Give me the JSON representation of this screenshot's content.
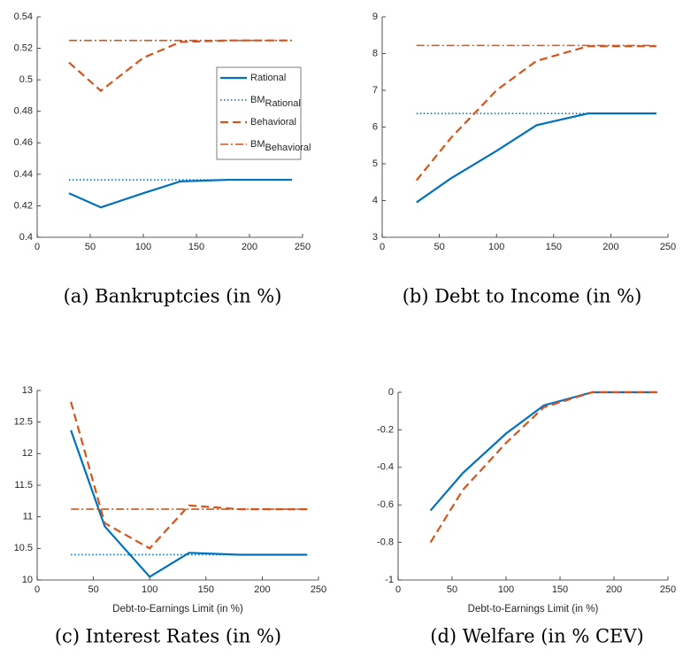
{
  "chart_data": [
    {
      "type": "line",
      "caption": "(a) Bankruptcies (in %)",
      "xlim": [
        0,
        250
      ],
      "xticks": [
        0,
        50,
        100,
        150,
        200,
        250
      ],
      "ylim": [
        0.4,
        0.54
      ],
      "yticks": [
        0.4,
        0.42,
        0.44,
        0.46,
        0.48,
        0.5,
        0.52,
        0.54
      ],
      "legend": "right",
      "x": [
        30,
        60,
        100,
        135,
        180,
        240
      ],
      "series": [
        {
          "name": "Rational",
          "color": "#0072bd",
          "linestyle": "solid",
          "values": [
            0.428,
            0.419,
            0.428,
            0.4355,
            0.4365,
            0.4365
          ]
        },
        {
          "name": "BM",
          "subscript": "Rational",
          "color": "#0072bd",
          "linestyle": "dotted",
          "values": [
            0.4365,
            0.4365,
            0.4365,
            0.4365,
            0.4365,
            0.4365
          ]
        },
        {
          "name": "Behavioral",
          "color": "#d95319",
          "linestyle": "dashed",
          "values": [
            0.511,
            0.493,
            0.514,
            0.524,
            0.525,
            0.525
          ]
        },
        {
          "name": "BM",
          "subscript": "Behavioral",
          "color": "#d95319",
          "linestyle": "dashdot",
          "values": [
            0.525,
            0.525,
            0.525,
            0.525,
            0.525,
            0.525
          ]
        }
      ]
    },
    {
      "type": "line",
      "caption": "(b) Debt to Income (in %)",
      "xlim": [
        0,
        250
      ],
      "xticks": [
        0,
        50,
        100,
        150,
        200,
        250
      ],
      "ylim": [
        3,
        9
      ],
      "yticks": [
        3,
        4,
        5,
        6,
        7,
        8,
        9
      ],
      "x": [
        30,
        60,
        100,
        135,
        180,
        240
      ],
      "series": [
        {
          "color": "#0072bd",
          "linestyle": "solid",
          "values": [
            3.95,
            4.6,
            5.35,
            6.05,
            6.37,
            6.37
          ]
        },
        {
          "color": "#0072bd",
          "linestyle": "dotted",
          "values": [
            6.37,
            6.37,
            6.37,
            6.37,
            6.37,
            6.37
          ]
        },
        {
          "color": "#d95319",
          "linestyle": "dashed",
          "values": [
            4.55,
            5.7,
            7.0,
            7.8,
            8.2,
            8.2
          ]
        },
        {
          "color": "#d95319",
          "linestyle": "dashdot",
          "values": [
            8.22,
            8.22,
            8.22,
            8.22,
            8.22,
            8.22
          ]
        }
      ]
    },
    {
      "type": "line",
      "caption": "(c) Interest Rates (in %)",
      "x_label": "Debt-to-Earnings Limit (in %)",
      "xlim": [
        0,
        250
      ],
      "xticks": [
        0,
        50,
        100,
        150,
        200,
        250
      ],
      "ylim": [
        10,
        13
      ],
      "yticks": [
        10,
        10.5,
        11,
        11.5,
        12,
        12.5,
        13
      ],
      "x": [
        30,
        60,
        100,
        135,
        180,
        240
      ],
      "series": [
        {
          "color": "#0072bd",
          "linestyle": "solid",
          "values": [
            12.37,
            10.85,
            10.05,
            10.43,
            10.4,
            10.4
          ]
        },
        {
          "color": "#0072bd",
          "linestyle": "dotted",
          "values": [
            10.4,
            10.4,
            10.4,
            10.4,
            10.4,
            10.4
          ]
        },
        {
          "color": "#d95319",
          "linestyle": "dashed",
          "values": [
            12.82,
            10.9,
            10.5,
            11.18,
            11.12,
            11.12
          ]
        },
        {
          "color": "#d95319",
          "linestyle": "dashdot",
          "values": [
            11.12,
            11.12,
            11.12,
            11.12,
            11.12,
            11.12
          ]
        }
      ]
    },
    {
      "type": "line",
      "caption": "(d) Welfare (in % CEV)",
      "x_label": "Debt-to-Earnings Limit (in %)",
      "xlim": [
        0,
        250
      ],
      "xticks": [
        0,
        50,
        100,
        150,
        200,
        250
      ],
      "ylim": [
        -1,
        0
      ],
      "yticks": [
        -1,
        -0.8,
        -0.6,
        -0.4,
        -0.2,
        0
      ],
      "x": [
        30,
        60,
        100,
        135,
        180,
        240
      ],
      "series": [
        {
          "color": "#0072bd",
          "linestyle": "solid",
          "values": [
            -0.63,
            -0.43,
            -0.22,
            -0.07,
            0,
            0
          ]
        },
        {
          "color": "#d95319",
          "linestyle": "dashed",
          "values": [
            -0.8,
            -0.52,
            -0.27,
            -0.08,
            0,
            0
          ]
        }
      ]
    }
  ]
}
